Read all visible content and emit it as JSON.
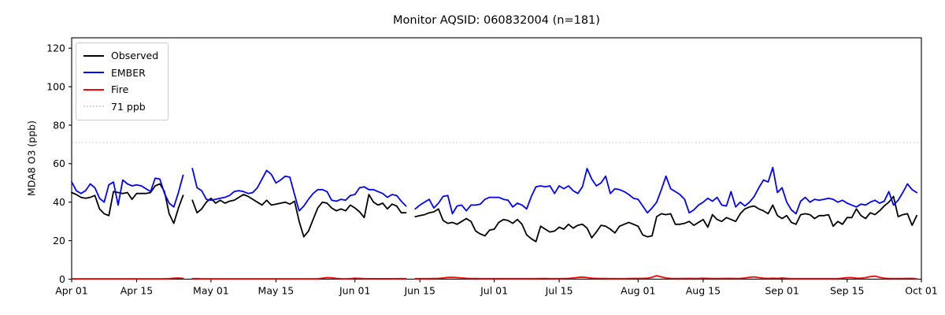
{
  "title": "Monitor AQSID: 060832004 (n=181)",
  "y_axis": {
    "label": "MDA8 O3 (ppb)",
    "ticks": [
      0,
      20,
      40,
      60,
      80,
      100,
      120
    ]
  },
  "x_axis": {
    "ticks": [
      {
        "day": 0,
        "label": "Apr 01"
      },
      {
        "day": 14,
        "label": "Apr 15"
      },
      {
        "day": 30,
        "label": "May 01"
      },
      {
        "day": 44,
        "label": "May 15"
      },
      {
        "day": 61,
        "label": "Jun 01"
      },
      {
        "day": 75,
        "label": "Jun 15"
      },
      {
        "day": 91,
        "label": "Jul 01"
      },
      {
        "day": 105,
        "label": "Jul 15"
      },
      {
        "day": 122,
        "label": "Aug 01"
      },
      {
        "day": 136,
        "label": "Aug 15"
      },
      {
        "day": 153,
        "label": "Sep 01"
      },
      {
        "day": 167,
        "label": "Sep 15"
      },
      {
        "day": 183,
        "label": "Oct 01"
      }
    ]
  },
  "threshold": {
    "value": 71,
    "label": "71 ppb",
    "color": "#d3d3d3"
  },
  "legend": {
    "items": [
      {
        "label": "Observed",
        "color": "#000000",
        "style": "solid"
      },
      {
        "label": "EMBER",
        "color": "#0000ff",
        "style": "solid"
      },
      {
        "label": "Fire",
        "color": "#ff0000",
        "style": "solid"
      },
      {
        "label": "71 ppb",
        "color": "#d3d3d3",
        "style": "dotted"
      }
    ]
  },
  "chart_data": {
    "type": "line",
    "title": "Monitor AQSID: 060832004 (n=181)",
    "xlabel": "",
    "ylabel": "MDA8 O3 (ppb)",
    "x_unit": "days since Apr 01",
    "x_range_days": [
      0,
      183
    ],
    "ylim": [
      0,
      125.4
    ],
    "grid": false,
    "legend_position": "upper left",
    "n_points": 181,
    "missing_dates": [
      "Apr 26",
      "Jun 13"
    ],
    "threshold_line": {
      "label": "71 ppb",
      "value": 71
    },
    "series": [
      {
        "name": "Observed",
        "color": "#000000",
        "values": [
          45,
          44,
          42.5,
          42,
          42.5,
          43.5,
          36.5,
          34,
          33,
          45.5,
          45,
          44.5,
          45,
          41.5,
          44.5,
          44.5,
          44.5,
          45,
          48.5,
          49.5,
          45.5,
          34,
          29,
          37,
          43.5,
          null,
          41,
          34.5,
          36.5,
          40,
          42,
          39.5,
          41,
          39.5,
          40.5,
          41,
          42.5,
          44,
          43,
          41.5,
          40,
          38.5,
          41,
          38.5,
          39,
          39.5,
          40,
          39,
          40.5,
          30,
          22,
          25,
          31,
          37,
          40,
          39.5,
          37,
          35.5,
          36.5,
          35.5,
          38.5,
          37,
          35,
          32,
          44,
          40,
          38.5,
          39.5,
          36.5,
          39,
          38,
          34.5,
          34.5,
          null,
          32.5,
          33,
          33.5,
          34.5,
          35,
          36.5,
          30.5,
          29,
          29.5,
          28.5,
          30,
          31.5,
          30,
          25,
          23.5,
          22.5,
          25.5,
          26,
          29.5,
          31,
          30.5,
          29,
          31,
          28.5,
          23,
          21,
          19.5,
          27.5,
          26,
          24.5,
          25,
          27,
          26,
          28.5,
          26.5,
          28,
          28.5,
          26.5,
          21.5,
          24.5,
          28,
          27.5,
          26,
          24,
          27.5,
          28.5,
          29.5,
          28.5,
          27.5,
          23,
          22,
          22.5,
          32.5,
          34,
          33.5,
          34,
          28.5,
          28.5,
          29,
          30,
          28,
          29.5,
          31,
          27,
          33.5,
          31,
          30,
          32,
          31,
          30,
          34,
          36.5,
          37.5,
          38,
          36.5,
          35.5,
          34,
          38.5,
          33,
          31.5,
          33,
          29.5,
          28.5,
          33.5,
          34,
          33.5,
          31.5,
          33,
          33,
          33.5,
          27.5,
          30,
          28.5,
          32,
          32,
          36.5,
          33,
          31.5,
          34.5,
          33.5,
          35.5,
          38,
          40,
          43,
          32.5,
          33.5,
          34,
          28,
          33
        ]
      },
      {
        "name": "EMBER",
        "color": "#0000ff",
        "values": [
          50.5,
          46,
          44.5,
          46,
          49.5,
          47.5,
          42,
          40,
          49,
          50.5,
          38.5,
          51.5,
          49.5,
          48.5,
          49,
          48.5,
          47,
          45.5,
          52.5,
          52,
          44.5,
          39.5,
          37.5,
          45,
          54,
          null,
          57.5,
          47.5,
          46,
          41.5,
          41,
          41.5,
          42,
          42.5,
          43.5,
          45.5,
          46,
          45.5,
          44.5,
          45,
          47.5,
          52,
          56.5,
          54.5,
          50,
          51.5,
          53.5,
          53,
          44,
          35.5,
          38,
          41.5,
          44.5,
          46.5,
          46.5,
          45.5,
          41,
          40.5,
          41.5,
          41,
          43.5,
          44,
          47.5,
          48,
          46.5,
          46.5,
          45.5,
          44.5,
          42.5,
          44,
          43.5,
          40.5,
          38,
          null,
          36.5,
          38.5,
          40,
          41.5,
          37,
          39.5,
          43,
          43.5,
          34,
          38,
          38.5,
          35.5,
          38.5,
          38.5,
          39,
          41.5,
          42.5,
          42.5,
          42.5,
          41.5,
          41,
          37.5,
          39.5,
          38.5,
          36.5,
          43,
          48,
          48.5,
          48,
          48.5,
          44.5,
          48.5,
          47,
          48.5,
          46,
          44.5,
          48,
          57.5,
          52,
          48.5,
          50,
          53.5,
          44.5,
          47,
          46.5,
          45.5,
          44,
          42,
          41.5,
          38,
          34.5,
          37,
          40,
          46.5,
          53.5,
          47,
          45.5,
          44,
          41.5,
          34.5,
          36,
          38.5,
          40,
          42,
          40.5,
          42.5,
          38.5,
          38,
          45.5,
          37.5,
          40,
          38,
          40,
          43,
          47.5,
          51.5,
          50.5,
          58,
          45,
          47.5,
          40,
          36,
          34,
          40.5,
          42.5,
          40,
          41.5,
          41,
          41.5,
          42,
          41.5,
          40,
          41,
          39.5,
          38.5,
          37.5,
          39,
          38.5,
          40,
          41,
          39.5,
          40.5,
          45.5,
          38.5,
          41,
          45,
          49.5,
          46.5,
          45
        ]
      },
      {
        "name": "Fire",
        "color": "#ff0000",
        "values": [
          0.2,
          0.2,
          0.2,
          0.2,
          0.2,
          0.2,
          0.2,
          0.2,
          0.2,
          0.2,
          0.2,
          0.2,
          0.2,
          0.2,
          0.2,
          0.2,
          0.2,
          0.2,
          0.2,
          0.2,
          0.2,
          0.3,
          0.5,
          0.6,
          0.4,
          null,
          0.3,
          0.3,
          0.2,
          0.2,
          0.2,
          0.2,
          0.2,
          0.2,
          0.2,
          0.2,
          0.2,
          0.2,
          0.2,
          0.2,
          0.2,
          0.2,
          0.2,
          0.2,
          0.2,
          0.2,
          0.2,
          0.2,
          0.2,
          0.2,
          0.2,
          0.2,
          0.2,
          0.2,
          0.5,
          0.8,
          0.7,
          0.4,
          0.25,
          0.2,
          0.3,
          0.5,
          0.4,
          0.3,
          0.25,
          0.25,
          0.25,
          0.25,
          0.25,
          0.25,
          0.3,
          0.3,
          0.3,
          null,
          0.3,
          0.3,
          0.3,
          0.3,
          0.35,
          0.4,
          0.6,
          0.9,
          1.0,
          0.8,
          0.6,
          0.45,
          0.35,
          0.35,
          0.3,
          0.3,
          0.3,
          0.3,
          0.3,
          0.3,
          0.3,
          0.3,
          0.3,
          0.3,
          0.3,
          0.3,
          0.3,
          0.35,
          0.35,
          0.3,
          0.3,
          0.3,
          0.35,
          0.4,
          0.6,
          0.9,
          1.1,
          0.8,
          0.5,
          0.4,
          0.35,
          0.35,
          0.3,
          0.3,
          0.3,
          0.3,
          0.35,
          0.4,
          0.4,
          0.4,
          0.5,
          1.0,
          1.8,
          1.2,
          0.6,
          0.4,
          0.35,
          0.35,
          0.35,
          0.4,
          0.35,
          0.35,
          0.5,
          0.4,
          0.35,
          0.35,
          0.35,
          0.4,
          0.4,
          0.35,
          0.4,
          0.6,
          1.0,
          1.2,
          0.8,
          0.5,
          0.4,
          0.5,
          0.4,
          0.6,
          0.4,
          0.3,
          0.3,
          0.3,
          0.3,
          0.3,
          0.3,
          0.3,
          0.3,
          0.3,
          0.3,
          0.3,
          0.5,
          0.8,
          0.8,
          0.5,
          0.5,
          0.8,
          1.3,
          1.6,
          1.0,
          0.5,
          0.35,
          0.35,
          0.35,
          0.35,
          0.4,
          0.4,
          0.2
        ]
      }
    ]
  }
}
